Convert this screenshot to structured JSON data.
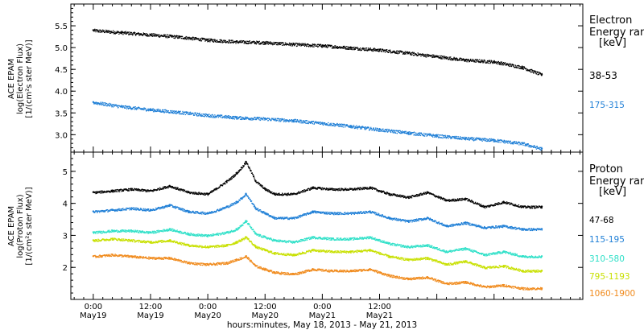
{
  "chart_data": [
    {
      "type": "scatter",
      "ylabel": [
        "ACE EPAM",
        "log(Electron Flux)",
        "[1/(cm²s ster MeV)]"
      ],
      "ylim": [
        2.6,
        6.0
      ],
      "yticks": [
        3.0,
        3.5,
        4.0,
        4.5,
        5.0,
        5.5
      ],
      "ytick_labels": [
        "3.0",
        "3.5",
        "4.0",
        "4.5",
        "5.0",
        "5.5"
      ],
      "legend_title": [
        "Electron",
        "Energy ran",
        "[keV]"
      ],
      "series": [
        {
          "name": "38-53",
          "color": "#000000",
          "x": [
            0,
            6,
            12,
            18,
            24,
            30,
            36,
            42,
            48,
            54,
            60,
            66,
            72,
            78,
            84,
            90,
            94
          ],
          "y": [
            5.4,
            5.35,
            5.3,
            5.25,
            5.18,
            5.14,
            5.12,
            5.08,
            5.05,
            5.0,
            4.95,
            4.88,
            4.8,
            4.72,
            4.68,
            4.55,
            4.38
          ]
        },
        {
          "name": "175-315",
          "color": "#1f7fd6",
          "x": [
            0,
            6,
            12,
            18,
            24,
            30,
            36,
            42,
            48,
            54,
            60,
            66,
            72,
            78,
            84,
            90,
            94
          ],
          "y": [
            3.75,
            3.65,
            3.58,
            3.52,
            3.45,
            3.4,
            3.37,
            3.33,
            3.27,
            3.2,
            3.12,
            3.05,
            2.98,
            2.92,
            2.88,
            2.8,
            2.68
          ]
        }
      ]
    },
    {
      "type": "scatter",
      "ylabel": [
        "ACE EPAM",
        "log(Proton Flux)",
        "[1/(cm²s ster MeV)]"
      ],
      "ylim": [
        1.0,
        5.6
      ],
      "yticks": [
        2,
        3,
        4,
        5
      ],
      "ytick_labels": [
        "2",
        "3",
        "4",
        "5"
      ],
      "legend_title": [
        "Proton",
        "Energy ran",
        "[keV]"
      ],
      "series": [
        {
          "name": "47-68",
          "color": "#000000",
          "x": [
            0,
            4,
            8,
            12,
            16,
            20,
            24,
            28,
            30,
            32,
            34,
            36,
            38,
            42,
            46,
            50,
            54,
            58,
            62,
            66,
            70,
            74,
            78,
            82,
            86,
            90,
            94
          ],
          "y": [
            4.35,
            4.4,
            4.45,
            4.4,
            4.55,
            4.35,
            4.3,
            4.7,
            4.95,
            5.3,
            4.7,
            4.45,
            4.3,
            4.3,
            4.5,
            4.45,
            4.45,
            4.5,
            4.3,
            4.2,
            4.35,
            4.1,
            4.15,
            3.9,
            4.05,
            3.9,
            3.9
          ]
        },
        {
          "name": "115-195",
          "color": "#1f7fd6",
          "x": [
            0,
            4,
            8,
            12,
            16,
            20,
            24,
            28,
            30,
            32,
            34,
            36,
            38,
            42,
            46,
            50,
            54,
            58,
            62,
            66,
            70,
            74,
            78,
            82,
            86,
            90,
            94
          ],
          "y": [
            3.75,
            3.8,
            3.85,
            3.8,
            3.95,
            3.75,
            3.7,
            3.9,
            4.05,
            4.3,
            3.85,
            3.7,
            3.55,
            3.55,
            3.75,
            3.7,
            3.7,
            3.75,
            3.55,
            3.45,
            3.55,
            3.3,
            3.4,
            3.25,
            3.3,
            3.2,
            3.2
          ]
        },
        {
          "name": "310-580",
          "color": "#2fe0c8",
          "x": [
            0,
            4,
            8,
            12,
            16,
            20,
            24,
            28,
            30,
            32,
            34,
            36,
            38,
            42,
            46,
            50,
            54,
            58,
            62,
            66,
            70,
            74,
            78,
            82,
            86,
            90,
            94
          ],
          "y": [
            3.1,
            3.15,
            3.15,
            3.1,
            3.2,
            3.05,
            3.0,
            3.1,
            3.2,
            3.45,
            3.05,
            2.95,
            2.85,
            2.8,
            2.95,
            2.9,
            2.9,
            2.95,
            2.75,
            2.65,
            2.7,
            2.5,
            2.6,
            2.4,
            2.5,
            2.35,
            2.35
          ]
        },
        {
          "name": "795-1193",
          "color": "#c8e000",
          "x": [
            0,
            4,
            8,
            12,
            16,
            20,
            24,
            28,
            30,
            32,
            34,
            36,
            38,
            42,
            46,
            50,
            54,
            58,
            62,
            66,
            70,
            74,
            78,
            82,
            86,
            90,
            94
          ],
          "y": [
            2.85,
            2.9,
            2.85,
            2.8,
            2.85,
            2.7,
            2.65,
            2.7,
            2.8,
            2.95,
            2.65,
            2.55,
            2.45,
            2.4,
            2.55,
            2.5,
            2.5,
            2.55,
            2.35,
            2.25,
            2.3,
            2.1,
            2.2,
            2.0,
            2.05,
            1.9,
            1.9
          ]
        },
        {
          "name": "1060-1900",
          "color": "#f08a1c",
          "x": [
            0,
            4,
            8,
            12,
            16,
            20,
            24,
            28,
            30,
            32,
            34,
            36,
            38,
            42,
            46,
            50,
            54,
            58,
            62,
            66,
            70,
            74,
            78,
            82,
            86,
            90,
            94
          ],
          "y": [
            2.35,
            2.4,
            2.35,
            2.3,
            2.3,
            2.15,
            2.1,
            2.15,
            2.25,
            2.35,
            2.05,
            1.95,
            1.85,
            1.8,
            1.95,
            1.9,
            1.9,
            1.95,
            1.75,
            1.65,
            1.7,
            1.5,
            1.55,
            1.4,
            1.45,
            1.35,
            1.35
          ]
        }
      ]
    }
  ],
  "x_axis": {
    "xlim": [
      -4.7,
      102.6
    ],
    "major_ticks": [
      0,
      12,
      24,
      36,
      48,
      60,
      72,
      84
    ],
    "tick_labels": [
      [
        "0:00",
        "May19"
      ],
      [
        "12:00",
        "May19"
      ],
      [
        "0:00",
        "May20"
      ],
      [
        "12:00",
        "May20"
      ],
      [
        "0:00",
        "May21"
      ],
      [
        "12:00",
        "May21"
      ]
    ],
    "labeled_ticks": [
      0,
      12,
      24,
      36,
      48,
      60
    ],
    "xlabel": "hours:minutes, May 18, 2013 - May 21, 2013"
  }
}
